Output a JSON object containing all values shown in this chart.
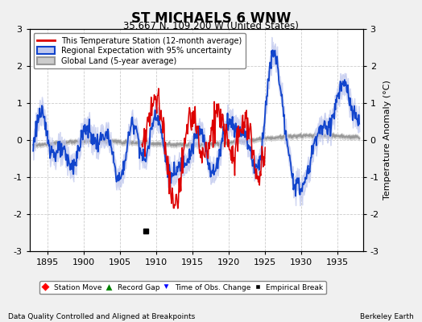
{
  "title": "ST MICHAELS 6 WNW",
  "subtitle": "35.667 N, 109.200 W (United States)",
  "xlabel_years": [
    1895,
    1900,
    1905,
    1910,
    1915,
    1920,
    1925,
    1930,
    1935
  ],
  "ylim": [
    -3,
    3
  ],
  "yticks": [
    -3,
    -2,
    -1,
    0,
    1,
    2,
    3
  ],
  "xlim": [
    1892.5,
    1938.5
  ],
  "ylabel": "Temperature Anomaly (°C)",
  "footer_left": "Data Quality Controlled and Aligned at Breakpoints",
  "footer_right": "Berkeley Earth",
  "legend_entries": [
    "This Temperature Station (12-month average)",
    "Regional Expectation with 95% uncertainty",
    "Global Land (5-year average)"
  ],
  "bg_color": "#f0f0f0",
  "plot_bg_color": "#ffffff",
  "red_color": "#dd0000",
  "blue_color": "#1144cc",
  "blue_fill_color": "#c0c8ee",
  "gray_color": "#999999",
  "gray_fill_color": "#cccccc",
  "empirical_break_x": 1908.5,
  "empirical_break_y": -2.45
}
